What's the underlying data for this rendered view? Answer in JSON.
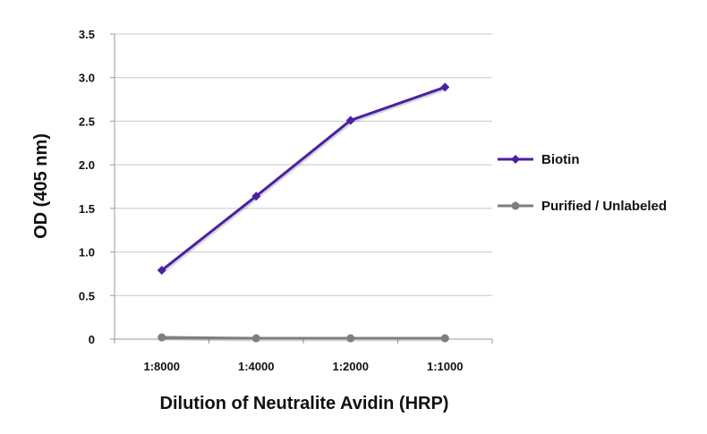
{
  "chart_data": {
    "type": "line",
    "categories": [
      "1:8000",
      "1:4000",
      "1:2000",
      "1:1000"
    ],
    "series": [
      {
        "name": "Biotin",
        "values": [
          0.79,
          1.64,
          2.51,
          2.89
        ],
        "color": "#4b1fa5",
        "marker": "diamond"
      },
      {
        "name": "Purified / Unlabeled",
        "values": [
          0.02,
          0.01,
          0.01,
          0.01
        ],
        "color": "#7f7f7f",
        "marker": "circle"
      }
    ],
    "title": "",
    "xlabel": "Dilution of Neutralite Avidin (HRP)",
    "ylabel": "OD (405 nm)",
    "ylim": [
      0,
      3.5
    ],
    "yticks": [
      "0",
      "0.5",
      "1.0",
      "1.5",
      "2.0",
      "2.5",
      "3.0",
      "3.5"
    ],
    "grid": true,
    "legend_position": "right"
  }
}
